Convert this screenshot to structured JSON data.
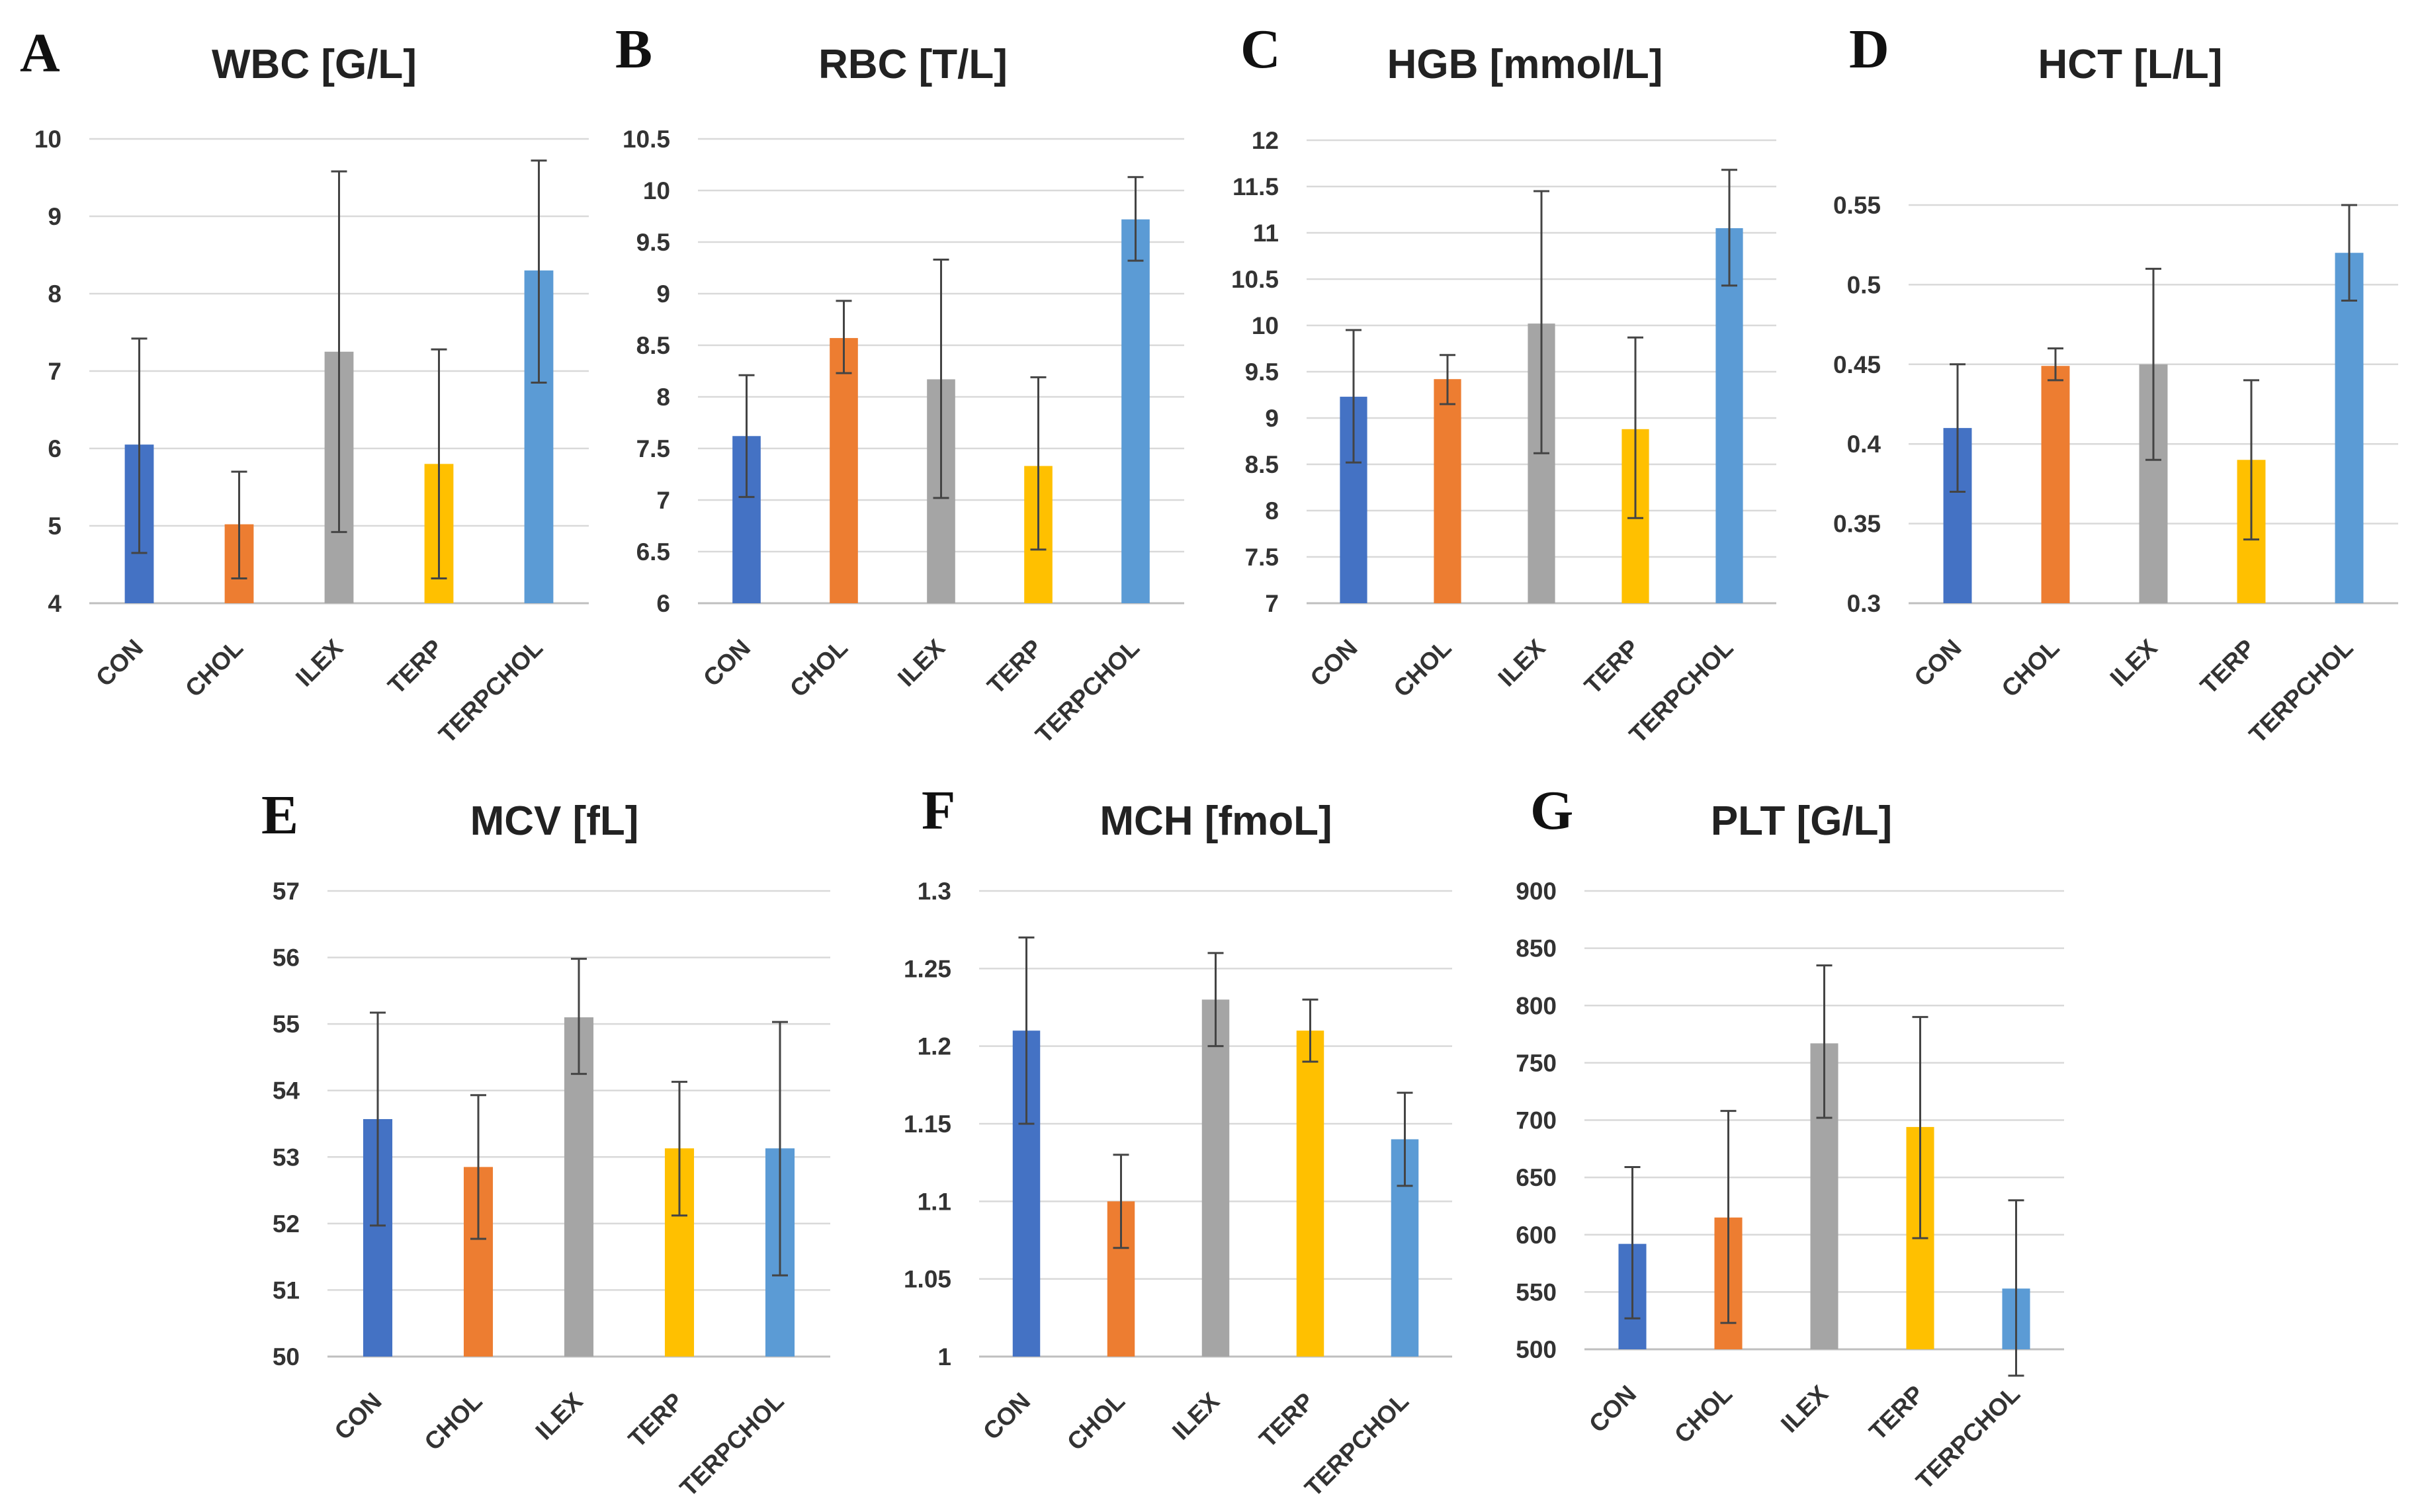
{
  "colors": {
    "CON": "#4472C4",
    "CHOL": "#ED7D31",
    "ILEX": "#A5A5A5",
    "TERP": "#FFC000",
    "TERPCHOL": "#5B9BD5",
    "grid": "#d9d9d9",
    "errorbar": "#444444"
  },
  "chart_data": [
    {
      "type": "bar",
      "letter": "A",
      "title": "WBC [G/L]",
      "categories": [
        "CON",
        "CHOL",
        "ILEX",
        "TERP",
        "TERPCHOL"
      ],
      "values": [
        6.05,
        5.02,
        7.25,
        5.8,
        8.3
      ],
      "err_low": [
        4.65,
        4.32,
        4.92,
        4.32,
        6.85
      ],
      "err_high": [
        7.42,
        5.7,
        9.58,
        7.28,
        9.72
      ],
      "ylim": [
        4,
        10
      ],
      "yticks": [
        "4",
        "5",
        "6",
        "7",
        "8",
        "9",
        "10"
      ]
    },
    {
      "type": "bar",
      "letter": "B",
      "title": "RBC [T/L]",
      "categories": [
        "CON",
        "CHOL",
        "ILEX",
        "TERP",
        "TERPCHOL"
      ],
      "values": [
        7.62,
        8.57,
        8.17,
        7.33,
        9.72
      ],
      "err_low": [
        7.03,
        8.23,
        7.02,
        6.52,
        9.32
      ],
      "err_high": [
        8.21,
        8.93,
        9.33,
        8.19,
        10.13
      ],
      "ylim": [
        6,
        10.5
      ],
      "yticks": [
        "6",
        "6.5",
        "7",
        "7.5",
        "8",
        "8.5",
        "9",
        "9.5",
        "10",
        "10.5"
      ]
    },
    {
      "type": "bar",
      "letter": "C",
      "title": "HGB [mmol/L]",
      "categories": [
        "CON",
        "CHOL",
        "ILEX",
        "TERP",
        "TERPCHOL"
      ],
      "values": [
        9.23,
        9.42,
        10.02,
        8.88,
        11.05
      ],
      "err_low": [
        8.52,
        9.15,
        8.62,
        7.92,
        10.43
      ],
      "err_high": [
        9.95,
        9.68,
        11.45,
        9.87,
        11.68
      ],
      "ylim": [
        7,
        12
      ],
      "yticks": [
        "7",
        "7.5",
        "8",
        "8.5",
        "9",
        "9.5",
        "10",
        "10.5",
        "11",
        "11.5",
        "12"
      ]
    },
    {
      "type": "bar",
      "letter": "D",
      "title": "HCT [L/L]",
      "categories": [
        "CON",
        "CHOL",
        "ILEX",
        "TERP",
        "TERPCHOL"
      ],
      "values": [
        0.41,
        0.449,
        0.45,
        0.39,
        0.52
      ],
      "err_low": [
        0.37,
        0.44,
        0.39,
        0.34,
        0.49
      ],
      "err_high": [
        0.45,
        0.46,
        0.51,
        0.44,
        0.55
      ],
      "ylim": [
        0.3,
        0.55
      ],
      "yticks": [
        "0.3",
        "0.35",
        "0.4",
        "0.45",
        "0.5",
        "0.55"
      ]
    },
    {
      "type": "bar",
      "letter": "E",
      "title": "MCV [fL]",
      "categories": [
        "CON",
        "CHOL",
        "ILEX",
        "TERP",
        "TERPCHOL"
      ],
      "values": [
        53.57,
        52.85,
        55.1,
        53.13,
        53.13
      ],
      "err_low": [
        51.97,
        51.77,
        54.25,
        52.12,
        51.22
      ],
      "err_high": [
        55.17,
        53.93,
        55.98,
        54.13,
        55.03
      ],
      "ylim": [
        50,
        57
      ],
      "yticks": [
        "50",
        "51",
        "52",
        "53",
        "54",
        "55",
        "56",
        "57"
      ]
    },
    {
      "type": "bar",
      "letter": "F",
      "title": "MCH [fmoL]",
      "categories": [
        "CON",
        "CHOL",
        "ILEX",
        "TERP",
        "TERPCHOL"
      ],
      "values": [
        1.21,
        1.1,
        1.23,
        1.21,
        1.14
      ],
      "err_low": [
        1.15,
        1.07,
        1.2,
        1.19,
        1.11
      ],
      "err_high": [
        1.27,
        1.13,
        1.26,
        1.23,
        1.17
      ],
      "ylim": [
        1,
        1.3
      ],
      "yticks": [
        "1",
        "1.05",
        "1.1",
        "1.15",
        "1.2",
        "1.25",
        "1.3"
      ]
    },
    {
      "type": "bar",
      "letter": "G",
      "title": "PLT [G/L]",
      "categories": [
        "CON",
        "CHOL",
        "ILEX",
        "TERP",
        "TERPCHOL"
      ],
      "values": [
        592,
        615,
        767,
        694,
        553
      ],
      "err_low": [
        527,
        523,
        702,
        597,
        477
      ],
      "err_high": [
        659,
        708,
        835,
        790,
        630
      ],
      "ylim": [
        500,
        900
      ],
      "yticks": [
        "500",
        "550",
        "600",
        "650",
        "700",
        "750",
        "800",
        "850",
        "900"
      ]
    }
  ]
}
